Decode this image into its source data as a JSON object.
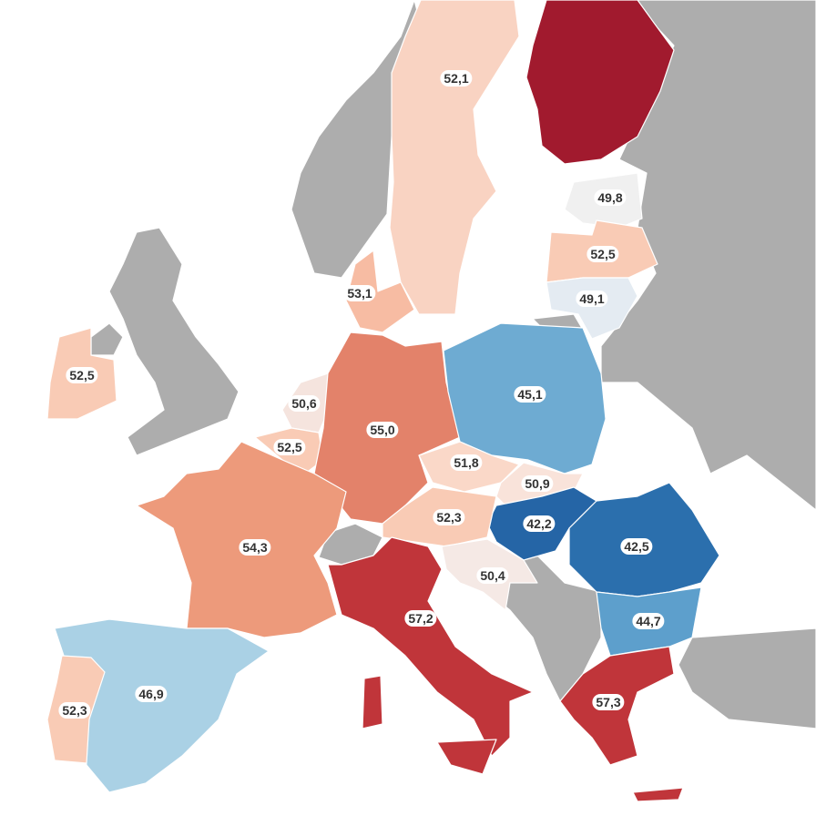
{
  "colors": {
    "neighbor": "#adadad",
    "water": "#ffffff"
  },
  "countries": [
    {
      "name": "Sweden",
      "value": "52,1",
      "color": "#f9d3c2"
    },
    {
      "name": "Finland",
      "value": "",
      "color": "#a11a2e"
    },
    {
      "name": "Estonia",
      "value": "49,8",
      "color": "#f0f0f0"
    },
    {
      "name": "Latvia",
      "value": "52,5",
      "color": "#f9cbb5"
    },
    {
      "name": "Lithuania",
      "value": "49,1",
      "color": "#e4ebf2"
    },
    {
      "name": "Denmark",
      "value": "53,1",
      "color": "#f7bca3"
    },
    {
      "name": "Ireland",
      "value": "52,5",
      "color": "#f9cbb5"
    },
    {
      "name": "Netherlands",
      "value": "50,6",
      "color": "#f5e4de"
    },
    {
      "name": "Belgium",
      "value": "52,5",
      "color": "#f9cbb5"
    },
    {
      "name": "Germany",
      "value": "55,0",
      "color": "#e3826a"
    },
    {
      "name": "Poland",
      "value": "45,1",
      "color": "#6eabd2"
    },
    {
      "name": "Czechia",
      "value": "51,8",
      "color": "#fad8c8"
    },
    {
      "name": "Slovakia",
      "value": "50,9",
      "color": "#f9e3da"
    },
    {
      "name": "Hungary",
      "value": "42,2",
      "color": "#2565a6"
    },
    {
      "name": "Austria",
      "value": "52,3",
      "color": "#f9cbb5"
    },
    {
      "name": "Romania",
      "value": "42,5",
      "color": "#2b6fad"
    },
    {
      "name": "Croatia",
      "value": "50,4",
      "color": "#f5e9e5"
    },
    {
      "name": "France",
      "value": "54,3",
      "color": "#ed9a7b"
    },
    {
      "name": "Italy",
      "value": "57,2",
      "color": "#c0353a"
    },
    {
      "name": "Bulgaria",
      "value": "44,7",
      "color": "#5d9fcc"
    },
    {
      "name": "Greece",
      "value": "57,3",
      "color": "#c0353a"
    },
    {
      "name": "Spain",
      "value": "46,9",
      "color": "#aad1e5"
    },
    {
      "name": "Portugal",
      "value": "52,3",
      "color": "#f9cbb5"
    }
  ]
}
